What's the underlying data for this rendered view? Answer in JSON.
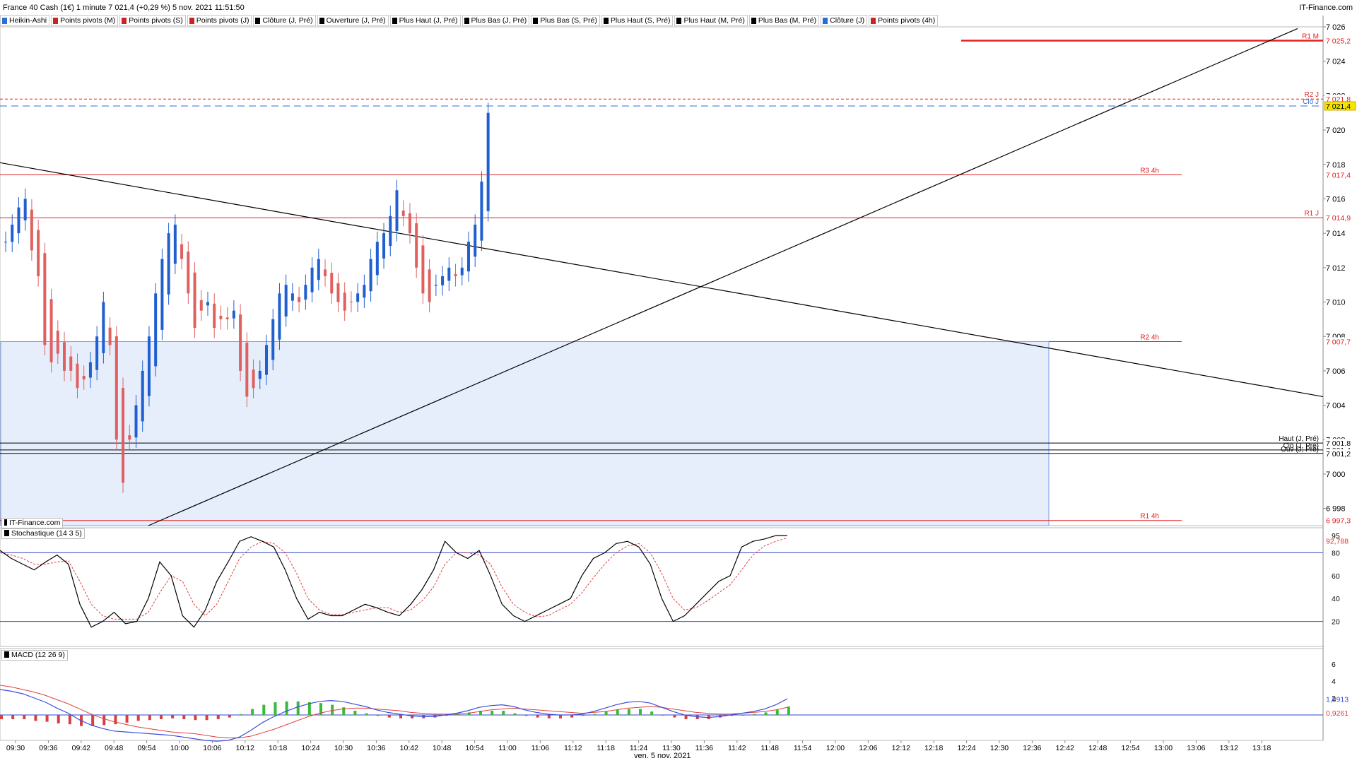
{
  "header": {
    "title": "France 40 Cash (1€) 1 minute 7 021,4 (+0,29 %) 5 nov. 2021 11:51:50",
    "brand": "IT-Finance.com"
  },
  "legend": [
    {
      "label": "Heikin-Ashi",
      "color": "#2b6fd6"
    },
    {
      "label": "Points pivots (M)",
      "color": "#cc2222"
    },
    {
      "label": "Points pivots (S)",
      "color": "#cc2222"
    },
    {
      "label": "Points pivots (J)",
      "color": "#cc2222"
    },
    {
      "label": "Clôture (J, Pré)",
      "color": "#000000"
    },
    {
      "label": "Ouverture (J, Pré)",
      "color": "#000000"
    },
    {
      "label": "Plus Haut (J, Pré)",
      "color": "#000000"
    },
    {
      "label": "Plus Bas (J, Pré)",
      "color": "#000000"
    },
    {
      "label": "Plus Bas (S, Pré)",
      "color": "#000000"
    },
    {
      "label": "Plus Haut (S, Pré)",
      "color": "#000000"
    },
    {
      "label": "Plus Haut (M, Pré)",
      "color": "#000000"
    },
    {
      "label": "Plus Bas (M, Pré)",
      "color": "#000000"
    },
    {
      "label": "Clôture (J)",
      "color": "#1f6fd6"
    },
    {
      "label": "Points pivots (4h)",
      "color": "#cc2222"
    }
  ],
  "panes": {
    "watermark": "IT-Finance.com",
    "stoch_label": "Stochastique (14 3 5)",
    "macd_label": "MACD (12 26 9)",
    "date_label": "ven. 5 nov. 2021"
  },
  "colors": {
    "up": "#1f5fcf",
    "down": "#e06060",
    "level": "#e02020",
    "zone": "#e6eefc",
    "zone_border": "#7aa0e8",
    "stoch_k": "#000000",
    "stoch_d": "#e04040",
    "macd": "#3a4fd8",
    "signal": "#e04040"
  },
  "chart_data": {
    "type": "candlestick",
    "price_axis": {
      "min": 6997,
      "max": 7026,
      "ticks": [
        "6 998",
        "7 000",
        "7 002",
        "7 004",
        "7 006",
        "7 008",
        "7 010",
        "7 012",
        "7 014",
        "7 016",
        "7 018",
        "7 020",
        "7 022",
        "7 024",
        "7 026"
      ]
    },
    "time_axis": [
      "09:30",
      "09:36",
      "09:42",
      "09:48",
      "09:54",
      "10:00",
      "10:06",
      "10:12",
      "10:18",
      "10:24",
      "10:30",
      "10:36",
      "10:42",
      "10:48",
      "10:54",
      "11:00",
      "11:06",
      "11:12",
      "11:18",
      "11:24",
      "11:30",
      "11:36",
      "11:42",
      "11:48",
      "11:54",
      "12:00",
      "12:06",
      "12:12",
      "12:18",
      "12:24",
      "12:30",
      "12:36",
      "12:42",
      "12:48",
      "12:54",
      "13:00",
      "13:06",
      "13:12",
      "13:18"
    ],
    "candles_close": [
      7013.5,
      7014.5,
      7015.5,
      7016.0,
      7013.0,
      7011.5,
      7007.5,
      7006.5,
      7007.0,
      7006.0,
      7006.0,
      7005.0,
      7005.5,
      7006.5,
      7008.0,
      7010.0,
      7007.5,
      7002.0,
      6999.5,
      7002.0,
      7004.0,
      7006.0,
      7008.0,
      7010.5,
      7012.5,
      7014.0,
      7014.5,
      7012.5,
      7010.5,
      7008.5,
      7009.5,
      7010.0,
      7008.5,
      7009.0,
      7009.0,
      7009.5,
      7006.0,
      7004.5,
      7005.0,
      7006.0,
      7007.5,
      7009.0,
      7010.5,
      7011.0,
      7010.5,
      7010.0,
      7011.0,
      7012.0,
      7012.5,
      7011.5,
      7010.5,
      7010.0,
      7009.5,
      7010.0,
      7010.5,
      7011.0,
      7012.5,
      7013.5,
      7014.0,
      7015.0,
      7016.5,
      7015.0,
      7014.0,
      7012.0,
      7010.5,
      7010.0,
      7011.0,
      7011.5,
      7012.0,
      7011.5,
      7012.0,
      7013.5,
      7014.5,
      7017.0,
      7021.0
    ],
    "levels": [
      {
        "label": "R1 M",
        "value": 7025.2,
        "price_label": "7 025,2"
      },
      {
        "label": "R2 J",
        "value": 7021.8,
        "price_label": "7 021,8"
      },
      {
        "label": "Clô J",
        "value": 7021.4,
        "price_label": "7 021,4"
      },
      {
        "label": "R3 4h",
        "value": 7017.4,
        "price_label": "7 017,4"
      },
      {
        "label": "R1 J",
        "value": 7014.9,
        "price_label": "7 014,9"
      },
      {
        "label": "R2 4h",
        "value": 7007.7,
        "price_label": "7 007,7"
      },
      {
        "label": "Haut (J, Pré)",
        "value": 7001.8,
        "price_label": "7 001,8"
      },
      {
        "label": "Clô (J, Pré)",
        "value": 7001.4,
        "price_label": "7 001,4"
      },
      {
        "label": "Ouv (J, Pré)",
        "value": 7001.2,
        "price_label": "7 001,2"
      },
      {
        "label": "R1 4h",
        "value": 6997.3,
        "price_label": "6 997,3"
      }
    ],
    "last_price_label": "7 021,4",
    "stochastic": {
      "axis": [
        "20",
        "40",
        "60",
        "80",
        "95"
      ],
      "k_last": "95",
      "d_last": "92,788",
      "k": [
        82,
        75,
        70,
        65,
        72,
        78,
        70,
        35,
        15,
        20,
        28,
        18,
        20,
        40,
        72,
        60,
        25,
        15,
        30,
        55,
        72,
        90,
        94,
        90,
        85,
        65,
        40,
        22,
        28,
        25,
        25,
        30,
        35,
        32,
        28,
        25,
        35,
        48,
        65,
        90,
        80,
        75,
        82,
        60,
        35,
        25,
        20,
        25,
        30,
        35,
        40,
        60,
        75,
        80,
        88,
        90,
        85,
        70,
        40,
        20,
        25,
        35,
        45,
        55,
        60,
        85,
        90,
        92,
        95,
        95
      ],
      "d": [
        80,
        78,
        75,
        70,
        70,
        72,
        73,
        55,
        35,
        25,
        22,
        22,
        22,
        28,
        45,
        60,
        55,
        35,
        25,
        35,
        55,
        75,
        85,
        90,
        88,
        80,
        62,
        40,
        30,
        26,
        26,
        28,
        30,
        32,
        32,
        28,
        30,
        38,
        50,
        70,
        80,
        80,
        78,
        70,
        50,
        35,
        28,
        24,
        25,
        30,
        35,
        45,
        58,
        70,
        80,
        86,
        88,
        80,
        62,
        40,
        30,
        32,
        38,
        45,
        52,
        65,
        78,
        86,
        90,
        93
      ]
    },
    "macd": {
      "axis": [
        "2",
        "4",
        "6"
      ],
      "macd_last": "1,8913",
      "signal_last": "0,9261",
      "macd": [
        3.0,
        2.8,
        2.5,
        2.0,
        1.5,
        0.8,
        0.2,
        -0.6,
        -1.2,
        -1.6,
        -1.9,
        -2.0,
        -2.1,
        -2.2,
        -2.3,
        -2.4,
        -2.6,
        -2.8,
        -3.0,
        -3.1,
        -3.0,
        -2.6,
        -1.8,
        -0.9,
        -0.2,
        0.4,
        0.9,
        1.3,
        1.6,
        1.7,
        1.6,
        1.3,
        1.0,
        0.6,
        0.3,
        0.1,
        -0.1,
        -0.2,
        -0.2,
        0.0,
        0.2,
        0.5,
        0.9,
        1.1,
        1.2,
        1.0,
        0.6,
        0.3,
        0.1,
        0.0,
        0.0,
        0.1,
        0.4,
        0.8,
        1.2,
        1.5,
        1.6,
        1.4,
        0.9,
        0.4,
        0.0,
        -0.2,
        -0.3,
        -0.2,
        0.0,
        0.2,
        0.4,
        0.7,
        1.2,
        1.9
      ],
      "signal": [
        3.5,
        3.3,
        3.0,
        2.7,
        2.3,
        1.8,
        1.3,
        0.7,
        0.1,
        -0.4,
        -0.8,
        -1.1,
        -1.4,
        -1.6,
        -1.8,
        -2.0,
        -2.1,
        -2.2,
        -2.4,
        -2.6,
        -2.7,
        -2.7,
        -2.5,
        -2.1,
        -1.7,
        -1.2,
        -0.7,
        -0.2,
        0.2,
        0.5,
        0.7,
        0.8,
        0.8,
        0.7,
        0.6,
        0.5,
        0.3,
        0.2,
        0.1,
        0.1,
        0.1,
        0.2,
        0.4,
        0.6,
        0.7,
        0.8,
        0.7,
        0.6,
        0.5,
        0.4,
        0.3,
        0.2,
        0.3,
        0.4,
        0.6,
        0.8,
        0.9,
        1.0,
        0.9,
        0.7,
        0.5,
        0.3,
        0.2,
        0.1,
        0.1,
        0.2,
        0.3,
        0.4,
        0.6,
        0.9
      ]
    }
  }
}
